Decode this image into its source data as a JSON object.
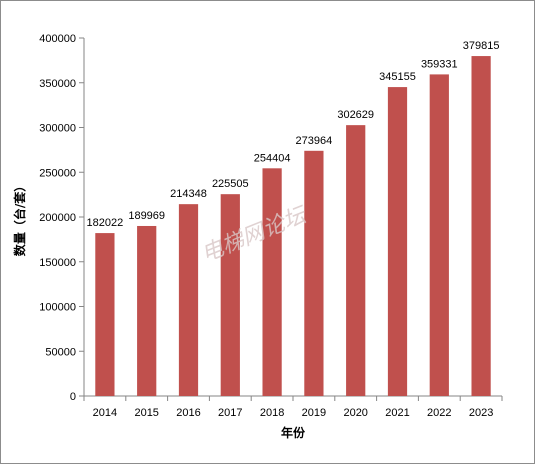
{
  "chart_data": {
    "type": "bar",
    "title": "",
    "xlabel": "年份",
    "ylabel": "数量（台/套）",
    "categories": [
      "2014",
      "2015",
      "2016",
      "2017",
      "2018",
      "2019",
      "2020",
      "2021",
      "2022",
      "2023"
    ],
    "series": [
      {
        "values": [
          182022,
          189969,
          214348,
          225505,
          254404,
          273964,
          302629,
          345155,
          359331,
          379815
        ],
        "color": "#c0504d"
      }
    ],
    "data_labels": [
      "182022",
      "189969",
      "214348",
      "225505",
      "254404",
      "273964",
      "302629",
      "345155",
      "359331",
      "379815"
    ],
    "ylim": [
      0,
      400000
    ],
    "yticks": [
      0,
      50000,
      100000,
      150000,
      200000,
      250000,
      300000,
      350000,
      400000
    ],
    "ytick_labels": [
      "0",
      "50000",
      "100000",
      "150000",
      "200000",
      "250000",
      "300000",
      "350000",
      "400000"
    ],
    "grid": false,
    "legend": "none",
    "watermark": "电梯网论坛"
  }
}
